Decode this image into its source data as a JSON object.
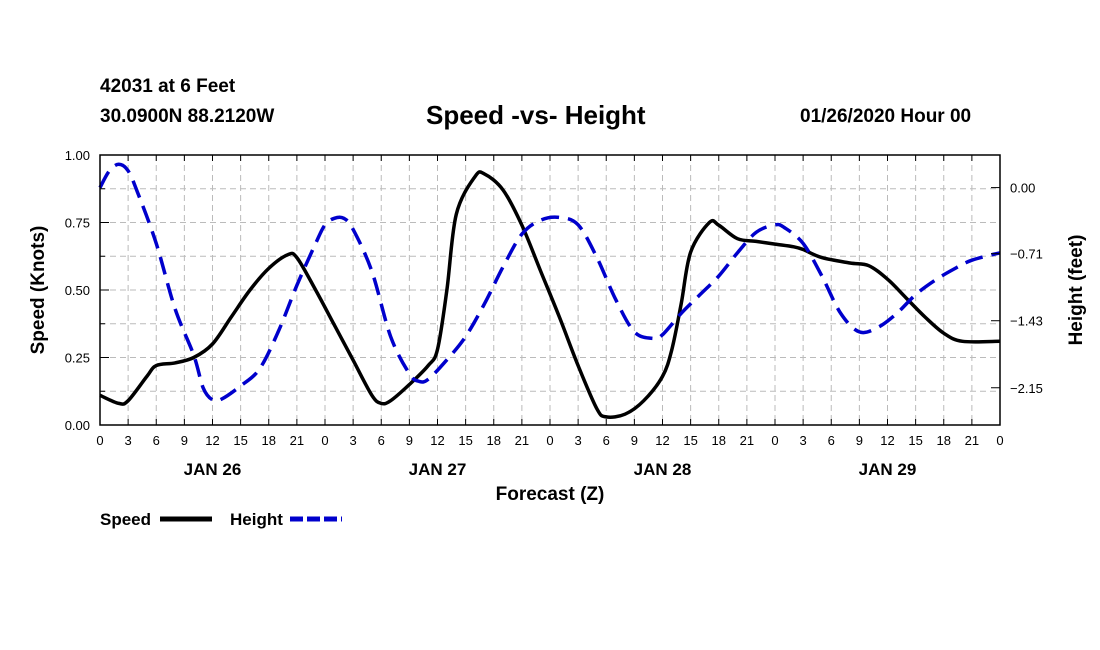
{
  "header": {
    "station": "42031 at 6 Feet",
    "coords": "30.0900N 88.2120W",
    "datetime": "01/26/2020 Hour 00"
  },
  "chart_data": {
    "type": "line",
    "title": "Speed -vs- Height",
    "xlabel": "Forecast (Z)",
    "ylabel_left": "Speed (Knots)",
    "ylabel_right": "Height (feet)",
    "x_range_hours": [
      0,
      96
    ],
    "ylim_left": [
      0,
      1.0
    ],
    "ylim_right": [
      -2.55,
      0.35
    ],
    "left_ticks": [
      "0.00",
      "0.25",
      "0.50",
      "0.75",
      "1.00"
    ],
    "right_ticks": [
      {
        "value": 0.0,
        "label": "0.00"
      },
      {
        "value": -0.71,
        "label": "−0.71"
      },
      {
        "value": -1.43,
        "label": "−1.43"
      },
      {
        "value": -2.15,
        "label": "−2.15"
      }
    ],
    "x_tick_labels": [
      "0",
      "3",
      "6",
      "9",
      "12",
      "15",
      "18",
      "21",
      "0",
      "3",
      "6",
      "9",
      "12",
      "15",
      "18",
      "21",
      "0",
      "3",
      "6",
      "9",
      "12",
      "15",
      "18",
      "21",
      "0",
      "3",
      "6",
      "9",
      "12",
      "15",
      "18",
      "21",
      "0"
    ],
    "day_labels": [
      {
        "label": "JAN 26",
        "hour": 12
      },
      {
        "label": "JAN 27",
        "hour": 36
      },
      {
        "label": "JAN 28",
        "hour": 60
      },
      {
        "label": "JAN 29",
        "hour": 84
      }
    ],
    "grid": true,
    "legend_position": "bottom-left",
    "series": [
      {
        "name": "Speed",
        "axis": "left",
        "style": "solid",
        "color": "#000000",
        "points": [
          [
            0,
            0.11
          ],
          [
            2,
            0.08
          ],
          [
            3,
            0.09
          ],
          [
            5,
            0.18
          ],
          [
            6,
            0.22
          ],
          [
            8,
            0.23
          ],
          [
            10,
            0.25
          ],
          [
            12,
            0.3
          ],
          [
            14,
            0.4
          ],
          [
            16,
            0.5
          ],
          [
            18,
            0.58
          ],
          [
            20,
            0.63
          ],
          [
            21,
            0.62
          ],
          [
            23,
            0.5
          ],
          [
            25,
            0.37
          ],
          [
            27,
            0.24
          ],
          [
            29,
            0.11
          ],
          [
            30,
            0.08
          ],
          [
            31,
            0.09
          ],
          [
            33,
            0.15
          ],
          [
            35,
            0.22
          ],
          [
            36,
            0.28
          ],
          [
            37,
            0.5
          ],
          [
            38,
            0.78
          ],
          [
            40,
            0.92
          ],
          [
            41,
            0.93
          ],
          [
            43,
            0.87
          ],
          [
            45,
            0.74
          ],
          [
            47,
            0.57
          ],
          [
            49,
            0.4
          ],
          [
            51,
            0.22
          ],
          [
            53,
            0.06
          ],
          [
            54,
            0.03
          ],
          [
            56,
            0.04
          ],
          [
            58,
            0.09
          ],
          [
            60,
            0.18
          ],
          [
            61,
            0.28
          ],
          [
            62,
            0.45
          ],
          [
            63,
            0.64
          ],
          [
            65,
            0.75
          ],
          [
            66,
            0.74
          ],
          [
            68,
            0.69
          ],
          [
            70,
            0.68
          ],
          [
            72,
            0.67
          ],
          [
            74,
            0.66
          ],
          [
            75,
            0.65
          ],
          [
            77,
            0.62
          ],
          [
            80,
            0.6
          ],
          [
            82,
            0.59
          ],
          [
            84,
            0.54
          ],
          [
            86,
            0.47
          ],
          [
            88,
            0.4
          ],
          [
            90,
            0.34
          ],
          [
            92,
            0.31
          ],
          [
            96,
            0.31
          ]
        ]
      },
      {
        "name": "Height",
        "axis": "right",
        "style": "dashed",
        "color": "#0000cc",
        "points": [
          [
            0,
            0.0
          ],
          [
            1,
            0.18
          ],
          [
            2,
            0.25
          ],
          [
            3,
            0.18
          ],
          [
            4,
            -0.05
          ],
          [
            6,
            -0.6
          ],
          [
            8,
            -1.3
          ],
          [
            10,
            -1.8
          ],
          [
            11,
            -2.15
          ],
          [
            12,
            -2.28
          ],
          [
            13,
            -2.27
          ],
          [
            15,
            -2.13
          ],
          [
            17,
            -1.95
          ],
          [
            19,
            -1.55
          ],
          [
            21,
            -1.05
          ],
          [
            23,
            -0.6
          ],
          [
            24,
            -0.4
          ],
          [
            25,
            -0.33
          ],
          [
            26,
            -0.33
          ],
          [
            27,
            -0.45
          ],
          [
            29,
            -0.9
          ],
          [
            31,
            -1.6
          ],
          [
            33,
            -2.0
          ],
          [
            34,
            -2.08
          ],
          [
            35,
            -2.06
          ],
          [
            37,
            -1.85
          ],
          [
            39,
            -1.6
          ],
          [
            41,
            -1.25
          ],
          [
            43,
            -0.85
          ],
          [
            45,
            -0.5
          ],
          [
            47,
            -0.35
          ],
          [
            49,
            -0.32
          ],
          [
            51,
            -0.4
          ],
          [
            53,
            -0.75
          ],
          [
            55,
            -1.2
          ],
          [
            57,
            -1.55
          ],
          [
            59,
            -1.62
          ],
          [
            60,
            -1.58
          ],
          [
            62,
            -1.35
          ],
          [
            64,
            -1.15
          ],
          [
            66,
            -0.95
          ],
          [
            68,
            -0.7
          ],
          [
            70,
            -0.48
          ],
          [
            72,
            -0.4
          ],
          [
            73,
            -0.43
          ],
          [
            75,
            -0.6
          ],
          [
            77,
            -0.95
          ],
          [
            79,
            -1.35
          ],
          [
            81,
            -1.55
          ],
          [
            83,
            -1.5
          ],
          [
            85,
            -1.35
          ],
          [
            87,
            -1.15
          ],
          [
            89,
            -1.0
          ],
          [
            91,
            -0.88
          ],
          [
            93,
            -0.78
          ],
          [
            96,
            -0.7
          ]
        ]
      }
    ]
  },
  "legend": {
    "speed_label": "Speed",
    "height_label": "Height"
  }
}
